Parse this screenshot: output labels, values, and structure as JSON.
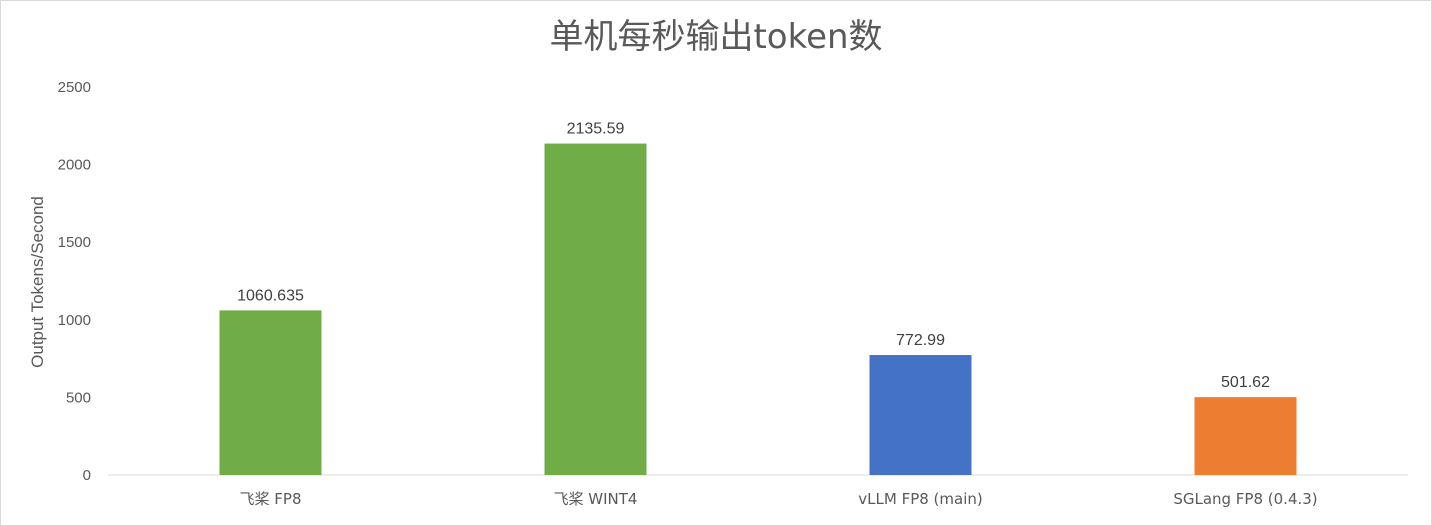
{
  "chart_data": {
    "type": "bar",
    "title": "单机每秒输出token数",
    "xlabel": "",
    "ylabel": "Output Tokens/Second",
    "categories": [
      "飞桨 FP8",
      "飞桨 WINT4",
      "vLLM FP8 (main)",
      "SGLang FP8 (0.4.3)"
    ],
    "values": [
      1060.635,
      2135.59,
      772.99,
      501.62
    ],
    "data_labels": [
      "1060.635",
      "2135.59",
      "772.99",
      "501.62"
    ],
    "colors": [
      "#70AD47",
      "#70AD47",
      "#4472C4",
      "#ED7D31"
    ],
    "ylim": [
      0,
      2500
    ],
    "yticks": [
      "0",
      "500",
      "1000",
      "1500",
      "2000",
      "2500"
    ],
    "grid": false,
    "legend": "none"
  }
}
